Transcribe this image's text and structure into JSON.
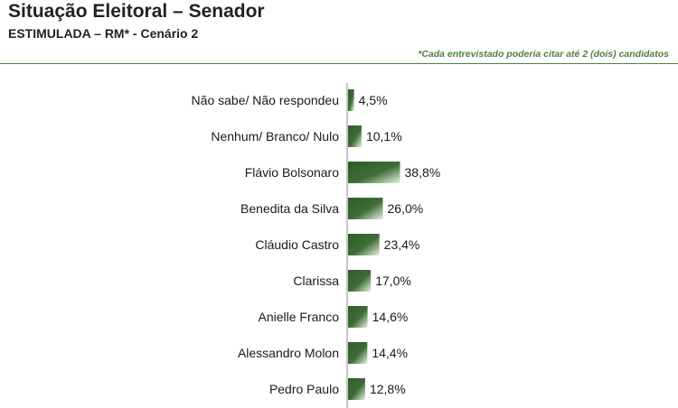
{
  "header": {
    "title": "Situação Eleitoral – Senador",
    "subtitle": "ESTIMULADA – RM* - Cenário 2",
    "note": "*Cada entrevistado poderia citar até 2 (dois) candidatos"
  },
  "colors": {
    "accent": "#4f7f3f",
    "bar_dark": "#2f5a2a",
    "bar_light": "#e9f1e4"
  },
  "chart_data": {
    "type": "bar",
    "orientation": "horizontal",
    "categories": [
      "Não sabe/ Não respondeu",
      "Nenhum/ Branco/ Nulo",
      "Flávio Bolsonaro",
      "Benedita da Silva",
      "Cláudio Castro",
      "Clarissa",
      "Anielle Franco",
      "Alessandro Molon",
      "Pedro Paulo"
    ],
    "values": [
      4.5,
      10.1,
      38.8,
      26.0,
      23.4,
      17.0,
      14.6,
      14.4,
      12.8
    ],
    "value_labels": [
      "4,5%",
      "10,1%",
      "38,8%",
      "26,0%",
      "23,4%",
      "17,0%",
      "14,6%",
      "14,4%",
      "12,8%"
    ],
    "unit": "%",
    "grid": false,
    "legend": "none"
  }
}
